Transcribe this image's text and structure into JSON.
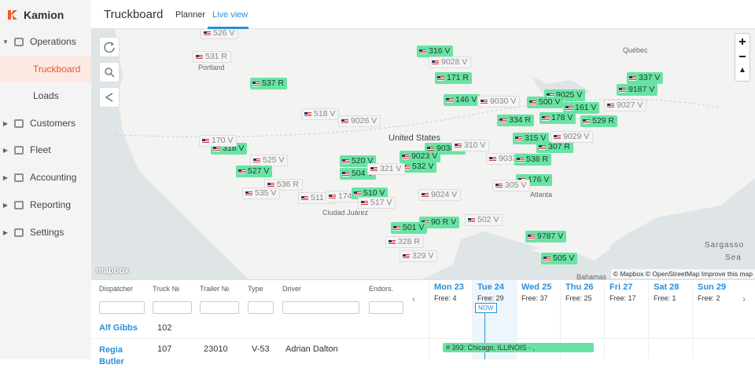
{
  "brand": "Kamion",
  "nav": [
    "Operations",
    "Truckboard",
    "Loads",
    "Customers",
    "Fleet",
    "Accounting",
    "Reporting",
    "Settings"
  ],
  "header": {
    "title": "Truckboard",
    "tabs": [
      "Planner",
      "Live view"
    ]
  },
  "map": {
    "places": [
      "United States",
      "Portland",
      "Québec",
      "Atlanta",
      "Ciudad Juárez",
      "Bahamas",
      "Sargasso",
      "Sea"
    ],
    "logo": "mapbox",
    "attribution": "© Mapbox © OpenStreetMap Improve this map",
    "markers": [
      "526 V",
      "531 R",
      "316 V",
      "9028 V",
      "537 R",
      "171 R",
      "337 V",
      "9187 V",
      "9025 V",
      "146 V",
      "9030 V",
      "500 V",
      "161 V",
      "9027 V",
      "518 V",
      "9026 V",
      "334 R",
      "178 V",
      "529 R",
      "318 V",
      "170 V",
      "315 V",
      "307 R",
      "9029 V",
      "9038 V",
      "310 V",
      "520 V",
      "9023 V",
      "532 V",
      "9033 V",
      "538 R",
      "525 V",
      "504 V",
      "321 V",
      "527 V",
      "536 R",
      "176 V",
      "535 V",
      "511 V",
      "174 R",
      "510 V",
      "9024 V",
      "305 V",
      "517 V",
      "90 R V",
      "501 V",
      "502 V",
      "328 R",
      "329 V",
      "9787 V",
      "505 V"
    ]
  },
  "table": {
    "columns": [
      "Dispatcher",
      "Truck №",
      "Trailer №",
      "Type",
      "Driver",
      "Endors."
    ],
    "rows": [
      {
        "dispatcher": "Alf Gibbs",
        "truck": "102"
      },
      {
        "dispatcher": "Regia Butler",
        "truck": "107",
        "trailer": "23010",
        "type": "V-53",
        "driver": "Adrian Dalton"
      }
    ]
  },
  "calendar": {
    "days": [
      {
        "day": "Mon 23",
        "free": "Free: 4"
      },
      {
        "day": "Tue 24",
        "free": "Free: 29"
      },
      {
        "day": "Wed 25",
        "free": "Free: 37"
      },
      {
        "day": "Thu 26",
        "free": "Free: 25"
      },
      {
        "day": "Fri 27",
        "free": "Free: 17"
      },
      {
        "day": "Sat 28",
        "free": "Free: 1"
      },
      {
        "day": "Sun 29",
        "free": "Free: 2"
      }
    ],
    "now": "NOW",
    "load": "# 393: Chicago, ILLINOIS - ,"
  }
}
